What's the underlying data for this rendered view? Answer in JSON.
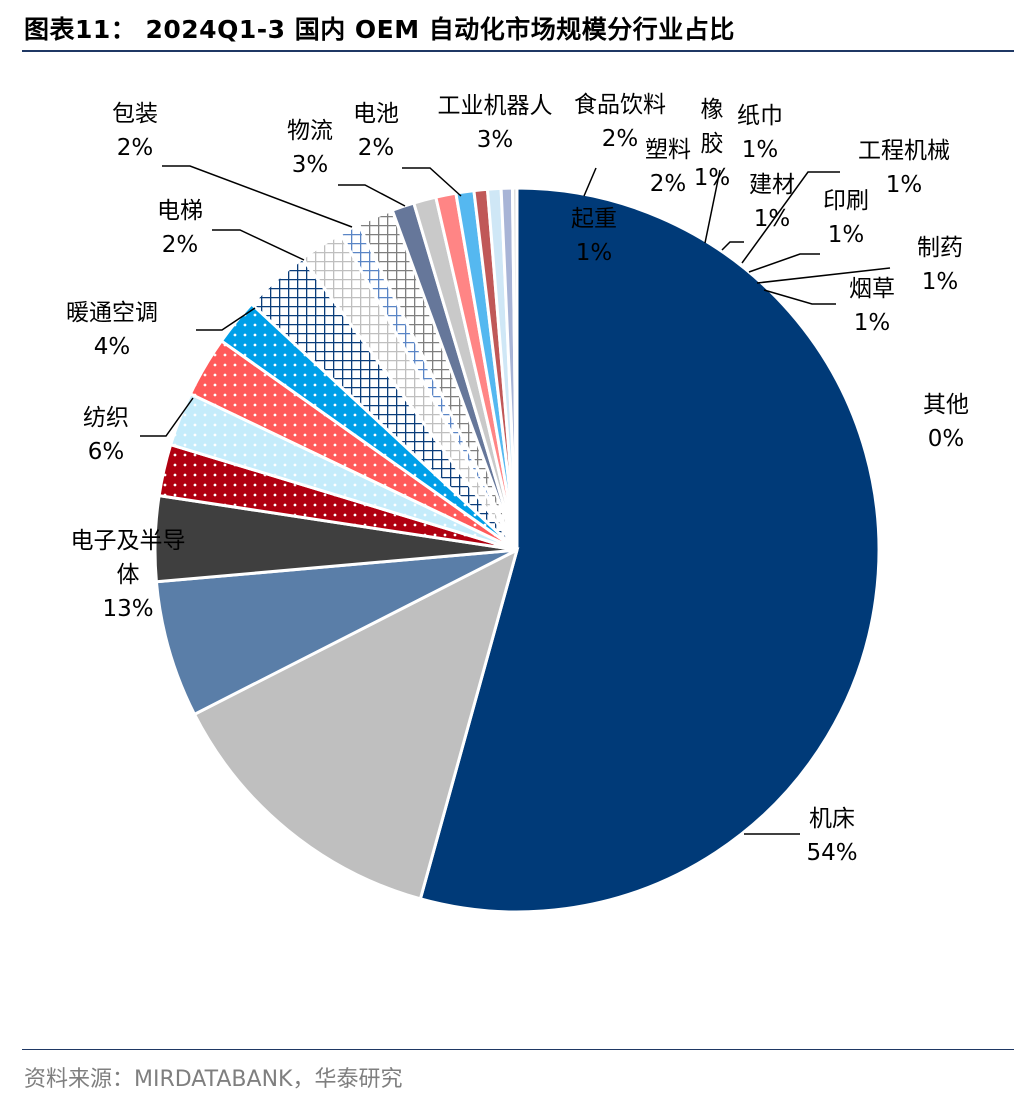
{
  "title": "图表11：  2024Q1-3 国内 OEM 自动化市场规模分行业占比",
  "source": "资料来源：MIRDATABANK，华泰研究",
  "colors": {
    "title_rule": "#1f3864",
    "source_text": "#7f7f7f"
  },
  "chart_data": {
    "type": "pie",
    "title": "",
    "start_angle_deg": 0,
    "direction": "clockwise",
    "slice_border": "#ffffff",
    "slices": [
      {
        "name": "机床",
        "label_lines": [
          "机床"
        ],
        "percent_label": "54%",
        "value": 54.3,
        "color": "#003a78",
        "pattern": "solid"
      },
      {
        "name": "电子及半导体",
        "label_lines": [
          "电子及半导",
          "体"
        ],
        "percent_label": "13%",
        "value": 13.2,
        "color": "#bfbfbf",
        "pattern": "solid"
      },
      {
        "name": "纺织",
        "label_lines": [
          "纺织"
        ],
        "percent_label": "6%",
        "value": 6.1,
        "color": "#5a7ea8",
        "pattern": "solid"
      },
      {
        "name": "暖通空调",
        "label_lines": [
          "暖通空调"
        ],
        "percent_label": "4%",
        "value": 3.8,
        "color": "#3f3f3f",
        "pattern": "solid"
      },
      {
        "name": "电梯",
        "label_lines": [
          "电梯"
        ],
        "percent_label": "2%",
        "value": 2.3,
        "color": "#b00010",
        "pattern": "dots"
      },
      {
        "name": "包装",
        "label_lines": [
          "包装"
        ],
        "percent_label": "2%",
        "value": 2.4,
        "color": "#c5ecfb",
        "pattern": "dots"
      },
      {
        "name": "物流",
        "label_lines": [
          "物流"
        ],
        "percent_label": "3%",
        "value": 2.7,
        "color": "#ff5a5a",
        "pattern": "dots"
      },
      {
        "name": "电池",
        "label_lines": [
          "电池"
        ],
        "percent_label": "2%",
        "value": 2.1,
        "color": "#009fe8",
        "pattern": "dots"
      },
      {
        "name": "工业机器人",
        "label_lines": [
          "工业机器人"
        ],
        "percent_label": "3%",
        "value": 3.0,
        "color": "#0b3d7a",
        "pattern": "grid"
      },
      {
        "name": "食品饮料",
        "label_lines": [
          "食品饮料"
        ],
        "percent_label": "2%",
        "value": 2.0,
        "color": "#bfbfbf",
        "pattern": "grid"
      },
      {
        "name": "起重",
        "label_lines": [
          "起重"
        ],
        "percent_label": "1%",
        "value": 0.9,
        "color": "#5a85c5",
        "pattern": "grid"
      },
      {
        "name": "塑料",
        "label_lines": [
          "塑料"
        ],
        "percent_label": "2%",
        "value": 1.6,
        "color": "#7f7f7f",
        "pattern": "grid"
      },
      {
        "name": "橡胶",
        "label_lines": [
          "橡",
          "胶"
        ],
        "percent_label": "1%",
        "value": 1.0,
        "color": "#66779a",
        "pattern": "solid"
      },
      {
        "name": "纸巾",
        "label_lines": [
          "纸巾"
        ],
        "percent_label": "1%",
        "value": 1.0,
        "color": "#c9c9c9",
        "pattern": "solid"
      },
      {
        "name": "建材",
        "label_lines": [
          "建材"
        ],
        "percent_label": "1%",
        "value": 0.9,
        "color": "#ff8585",
        "pattern": "solid"
      },
      {
        "name": "工程机械",
        "label_lines": [
          "工程机械"
        ],
        "percent_label": "1%",
        "value": 0.8,
        "color": "#55b8f0",
        "pattern": "solid"
      },
      {
        "name": "印刷",
        "label_lines": [
          "印刷"
        ],
        "percent_label": "1%",
        "value": 0.6,
        "color": "#c05858",
        "pattern": "solid"
      },
      {
        "name": "制药",
        "label_lines": [
          "制药"
        ],
        "percent_label": "1%",
        "value": 0.6,
        "color": "#cfe7f6",
        "pattern": "solid"
      },
      {
        "name": "烟草",
        "label_lines": [
          "烟草"
        ],
        "percent_label": "1%",
        "value": 0.5,
        "color": "#a8b4d6",
        "pattern": "solid"
      },
      {
        "name": "其他",
        "label_lines": [
          "其他"
        ],
        "percent_label": "0%",
        "value": 0.2,
        "color": "#e0e0e0",
        "pattern": "solid"
      }
    ]
  }
}
